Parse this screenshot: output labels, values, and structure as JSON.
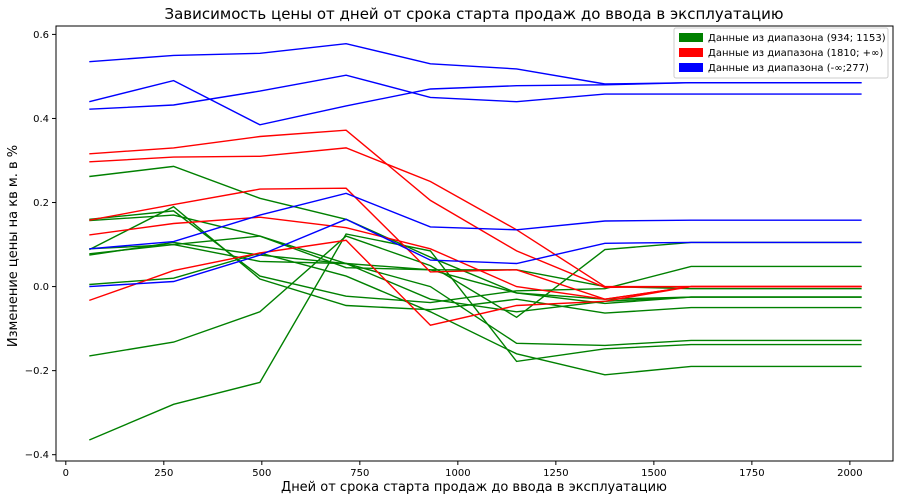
{
  "chart_data": {
    "type": "line",
    "title": "Зависимость цены от дней от срока старта продаж до ввода в эксплуатацию",
    "xlabel": "Дней от срока старта продаж до ввода в эксплуатацию",
    "ylabel": "Изменение цены на кв м. в %",
    "xlim": [
      -25,
      2110
    ],
    "ylim": [
      -0.415,
      0.62
    ],
    "xticks": [
      0,
      250,
      500,
      750,
      1000,
      1250,
      1500,
      1750,
      2000
    ],
    "yticks": [
      -0.4,
      -0.2,
      0.0,
      0.2,
      0.4,
      0.6
    ],
    "xtick_labels": [
      "0",
      "250",
      "500",
      "750",
      "1000",
      "1250",
      "1500",
      "1750",
      "2000"
    ],
    "ytick_labels": [
      "−0.4",
      "−0.2",
      "0.0",
      "0.2",
      "0.4",
      "0.6"
    ],
    "grid": false,
    "legend_position": "top-right",
    "x": [
      60,
      275,
      495,
      715,
      930,
      1150,
      1375,
      1595,
      2030
    ],
    "legend": [
      {
        "label": "Данные из диапазона (934; 1153)",
        "color": "#008000"
      },
      {
        "label": "Данные из диапазона (1810; +∞)",
        "color": "#ff0000"
      },
      {
        "label": "Данные из диапазона (-∞;277)",
        "color": "#0000ff"
      }
    ],
    "series": [
      {
        "group": 0,
        "values": [
          0.262,
          0.286,
          0.21,
          0.16,
          0.07,
          -0.015,
          -0.04,
          -0.025,
          -0.025
        ]
      },
      {
        "group": 0,
        "values": [
          0.157,
          0.17,
          0.12,
          0.055,
          0.04,
          0.04,
          0.0,
          -0.005,
          -0.005
        ]
      },
      {
        "group": 0,
        "values": [
          0.078,
          0.1,
          0.12,
          0.045,
          0.04,
          -0.015,
          -0.03,
          -0.025,
          -0.025
        ]
      },
      {
        "group": 0,
        "values": [
          0.075,
          0.105,
          0.075,
          0.055,
          -0.03,
          -0.06,
          -0.035,
          -0.025,
          -0.025
        ]
      },
      {
        "group": 0,
        "values": [
          0.005,
          0.02,
          0.08,
          0.025,
          -0.06,
          -0.16,
          -0.21,
          -0.19,
          -0.19
        ]
      },
      {
        "group": 0,
        "values": [
          -0.165,
          -0.132,
          -0.06,
          0.12,
          0.05,
          -0.073,
          0.088,
          0.105,
          0.105
        ]
      },
      {
        "group": 0,
        "values": [
          -0.365,
          -0.28,
          -0.228,
          0.125,
          0.085,
          -0.178,
          -0.148,
          -0.138,
          -0.138
        ]
      },
      {
        "group": 0,
        "values": [
          0.16,
          0.18,
          0.025,
          -0.023,
          -0.038,
          -0.01,
          -0.005,
          0.048,
          0.048
        ]
      },
      {
        "group": 0,
        "values": [
          0.09,
          0.1,
          0.06,
          0.055,
          0.0,
          -0.135,
          -0.14,
          -0.128,
          -0.128
        ]
      },
      {
        "group": 0,
        "values": [
          0.088,
          0.19,
          0.018,
          -0.045,
          -0.055,
          -0.03,
          -0.063,
          -0.05,
          -0.05
        ]
      },
      {
        "group": 1,
        "values": [
          0.316,
          0.33,
          0.357,
          0.372,
          0.205,
          0.085,
          -0.002,
          0.0,
          0.0
        ]
      },
      {
        "group": 1,
        "values": [
          0.297,
          0.308,
          0.31,
          0.33,
          0.25,
          0.135,
          0.0,
          0.0,
          0.0
        ]
      },
      {
        "group": 1,
        "values": [
          0.158,
          0.195,
          0.232,
          0.234,
          0.035,
          0.04,
          -0.03,
          0.0,
          0.0
        ]
      },
      {
        "group": 1,
        "values": [
          0.123,
          0.15,
          0.165,
          0.14,
          0.09,
          0.0,
          -0.03,
          0.0,
          0.0
        ]
      },
      {
        "group": 1,
        "values": [
          -0.033,
          0.038,
          0.08,
          0.11,
          -0.092,
          -0.045,
          -0.035,
          0.0,
          0.0
        ]
      },
      {
        "group": 2,
        "values": [
          0.535,
          0.55,
          0.555,
          0.578,
          0.53,
          0.518,
          0.482,
          0.485,
          0.485
        ]
      },
      {
        "group": 2,
        "values": [
          0.44,
          0.49,
          0.385,
          0.43,
          0.47,
          0.478,
          0.48,
          0.485,
          0.485
        ]
      },
      {
        "group": 2,
        "values": [
          0.422,
          0.432,
          0.465,
          0.503,
          0.45,
          0.44,
          0.458,
          0.458,
          0.458
        ]
      },
      {
        "group": 2,
        "values": [
          0.09,
          0.107,
          0.17,
          0.222,
          0.142,
          0.135,
          0.156,
          0.158,
          0.158
        ]
      },
      {
        "group": 2,
        "values": [
          0.0,
          0.012,
          0.075,
          0.16,
          0.063,
          0.055,
          0.103,
          0.105,
          0.105
        ]
      }
    ]
  }
}
